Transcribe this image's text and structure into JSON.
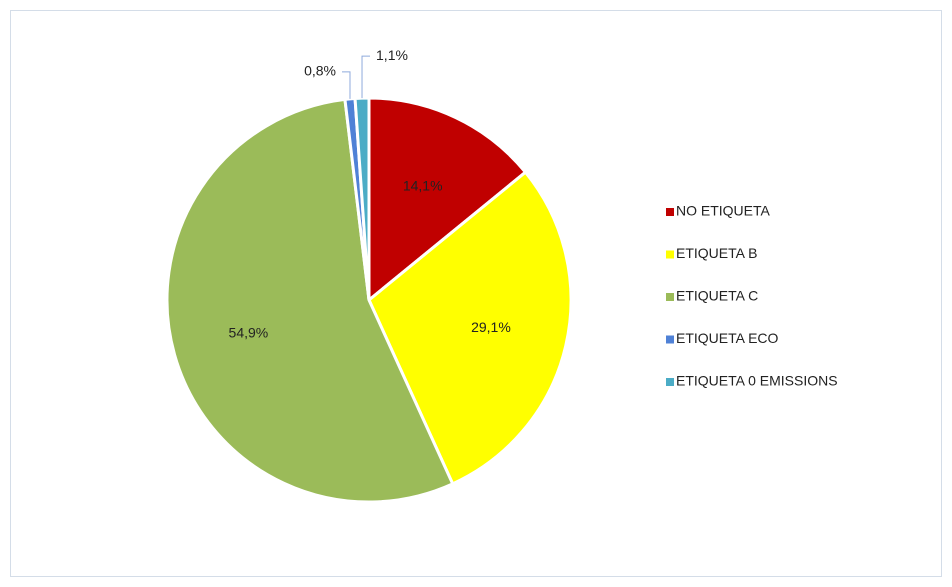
{
  "chart_data": {
    "type": "pie",
    "categories": [
      "NO ETIQUETA",
      "ETIQUETA B",
      "ETIQUETA C",
      "ETIQUETA ECO",
      "ETIQUETA 0 EMISSIONS"
    ],
    "values": [
      14.1,
      29.1,
      54.9,
      0.8,
      1.1
    ],
    "value_labels": [
      "14,1%",
      "29,1%",
      "54,9%",
      "0,8%",
      "1,1%"
    ],
    "colors": [
      "#c00000",
      "#ffff00",
      "#9bbb59",
      "#4f81d6",
      "#4bacc6"
    ],
    "legend": "right"
  }
}
